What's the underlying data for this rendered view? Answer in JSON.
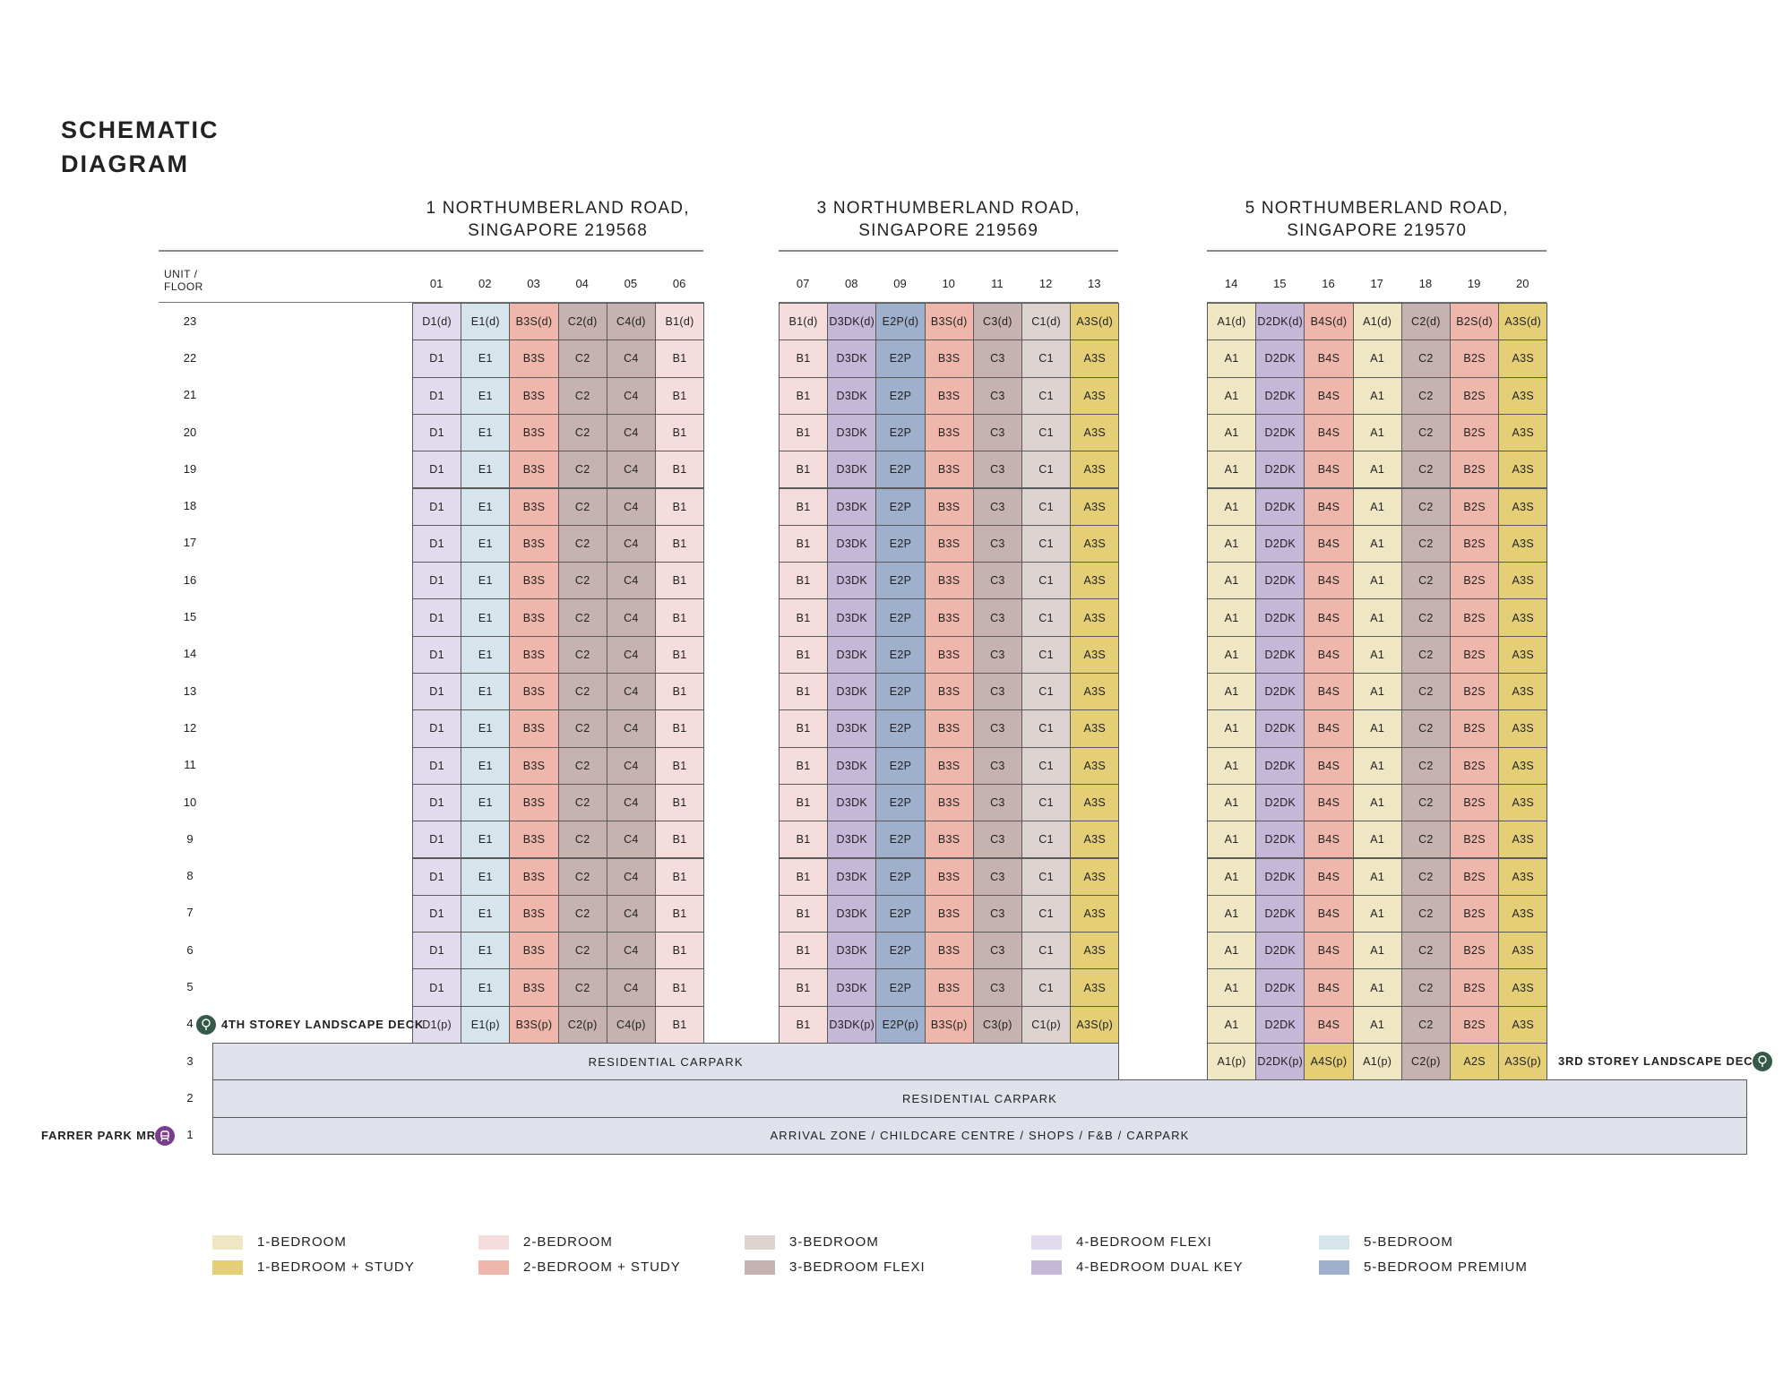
{
  "title_line1": "SCHEMATIC",
  "title_line2": "DIAGRAM",
  "unit_floor_label_line1": "UNIT /",
  "unit_floor_label_line2": "FLOOR",
  "colors": {
    "1-bedroom": "#efe6c4",
    "1-bedroom-study": "#e4cf76",
    "2-bedroom": "#f6dddd",
    "2-bedroom-study": "#efb7ab",
    "3-bedroom": "#ddd3d1",
    "3-bedroom-flexi": "#c5b2b1",
    "4-bedroom-flexi": "#e2dbed",
    "4-bedroom-dual-key": "#c5b7d8",
    "5-bedroom": "#d6e5ec",
    "5-bedroom-premium": "#9fb0cc",
    "carpark": "#dfe2ea",
    "landscape-badge": "#365a4a",
    "mrt-badge": "#7a3f8a"
  },
  "buildings": [
    {
      "name_line1": "1 NORTHUMBERLAND ROAD,",
      "name_line2": "SINGAPORE 219568",
      "columns": [
        {
          "unit": "01",
          "type": "4-bedroom-flexi",
          "top": "D1(d)",
          "typical": "D1",
          "f4": "D1(p)"
        },
        {
          "unit": "02",
          "type": "5-bedroom",
          "top": "E1(d)",
          "typical": "E1",
          "f4": "E1(p)"
        },
        {
          "unit": "03",
          "type": "2-bedroom-study",
          "top": "B3S(d)",
          "typical": "B3S",
          "f4": "B3S(p)"
        },
        {
          "unit": "04",
          "type": "3-bedroom-flexi",
          "top": "C2(d)",
          "typical": "C2",
          "f4": "C2(p)"
        },
        {
          "unit": "05",
          "type": "3-bedroom-flexi",
          "top": "C4(d)",
          "typical": "C4",
          "f4": "C4(p)"
        },
        {
          "unit": "06",
          "type": "2-bedroom",
          "top": "B1(d)",
          "typical": "B1",
          "f4": "B1"
        }
      ]
    },
    {
      "name_line1": "3 NORTHUMBERLAND ROAD,",
      "name_line2": "SINGAPORE 219569",
      "columns": [
        {
          "unit": "07",
          "type": "2-bedroom",
          "top": "B1(d)",
          "typical": "B1",
          "f4": "B1"
        },
        {
          "unit": "08",
          "type": "4-bedroom-dual-key",
          "top": "D3DK(d)",
          "typical": "D3DK",
          "f4": "D3DK(p)"
        },
        {
          "unit": "09",
          "type": "5-bedroom-premium",
          "top": "E2P(d)",
          "typical": "E2P",
          "f4": "E2P(p)"
        },
        {
          "unit": "10",
          "type": "2-bedroom-study",
          "top": "B3S(d)",
          "typical": "B3S",
          "f4": "B3S(p)"
        },
        {
          "unit": "11",
          "type": "3-bedroom-flexi",
          "top": "C3(d)",
          "typical": "C3",
          "f4": "C3(p)"
        },
        {
          "unit": "12",
          "type": "3-bedroom",
          "top": "C1(d)",
          "typical": "C1",
          "f4": "C1(p)"
        },
        {
          "unit": "13",
          "type": "1-bedroom-study",
          "top": "A3S(d)",
          "typical": "A3S",
          "f4": "A3S(p)"
        }
      ]
    },
    {
      "name_line1": "5 NORTHUMBERLAND ROAD,",
      "name_line2": "SINGAPORE 219570",
      "columns": [
        {
          "unit": "14",
          "type": "1-bedroom",
          "top": "A1(d)",
          "typical": "A1",
          "f4": "A1",
          "f3": "A1(p)"
        },
        {
          "unit": "15",
          "type": "4-bedroom-dual-key",
          "top": "D2DK(d)",
          "typical": "D2DK",
          "f4": "D2DK",
          "f3": "D2DK(p)"
        },
        {
          "unit": "16",
          "type": "2-bedroom-study",
          "top": "B4S(d)",
          "typical": "B4S",
          "f4": "B4S",
          "f3": "A4S(p)",
          "f3type": "1-bedroom-study"
        },
        {
          "unit": "17",
          "type": "1-bedroom",
          "top": "A1(d)",
          "typical": "A1",
          "f4": "A1",
          "f3": "A1(p)"
        },
        {
          "unit": "18",
          "type": "3-bedroom-flexi",
          "top": "C2(d)",
          "typical": "C2",
          "f4": "C2",
          "f3": "C2(p)"
        },
        {
          "unit": "19",
          "type": "2-bedroom-study",
          "top": "B2S(d)",
          "typical": "B2S",
          "f4": "B2S",
          "f3": "A2S",
          "f3type": "1-bedroom-study"
        },
        {
          "unit": "20",
          "type": "1-bedroom-study",
          "top": "A3S(d)",
          "typical": "A3S",
          "f4": "A3S",
          "f3": "A3S(p)"
        }
      ]
    }
  ],
  "floors": [
    "23",
    "22",
    "21",
    "20",
    "19",
    "18",
    "17",
    "16",
    "15",
    "14",
    "13",
    "12",
    "11",
    "10",
    "9",
    "8",
    "7",
    "6",
    "5",
    "4",
    "3",
    "2",
    "1"
  ],
  "carpark": {
    "level3": "RESIDENTIAL  CARPARK",
    "level2": "RESIDENTIAL CARPARK",
    "level1": "ARRIVAL ZONE / CHILDCARE CENTRE / SHOPS / F&B / CARPARK"
  },
  "side_labels": {
    "landscape_deck_4": "4TH STOREY LANDSCAPE DECK",
    "landscape_deck_3": "3RD STOREY LANDSCAPE DECK",
    "mrt": "FARRER PARK MRT"
  },
  "icons": {
    "landscape": "tree-icon",
    "mrt": "train-icon"
  },
  "legend": [
    {
      "label": "1-BEDROOM",
      "type": "1-bedroom"
    },
    {
      "label": "1-BEDROOM + STUDY",
      "type": "1-bedroom-study"
    },
    {
      "label": "2-BEDROOM",
      "type": "2-bedroom"
    },
    {
      "label": "2-BEDROOM + STUDY",
      "type": "2-bedroom-study"
    },
    {
      "label": "3-BEDROOM",
      "type": "3-bedroom"
    },
    {
      "label": "3-BEDROOM FLEXI",
      "type": "3-bedroom-flexi"
    },
    {
      "label": "4-BEDROOM FLEXI",
      "type": "4-bedroom-flexi"
    },
    {
      "label": "4-BEDROOM DUAL KEY",
      "type": "4-bedroom-dual-key"
    },
    {
      "label": "5-BEDROOM",
      "type": "5-bedroom"
    },
    {
      "label": "5-BEDROOM PREMIUM",
      "type": "5-bedroom-premium"
    }
  ]
}
